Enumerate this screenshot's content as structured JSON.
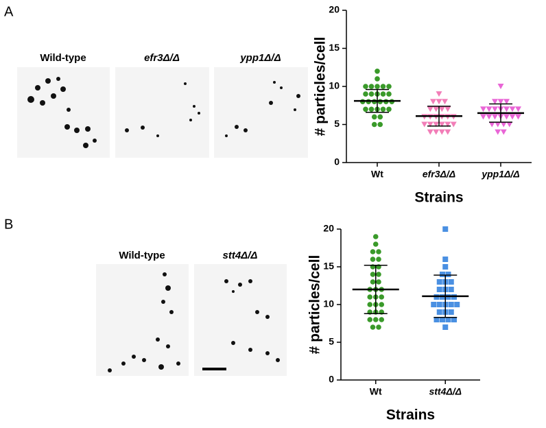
{
  "panels": [
    {
      "label": "A",
      "image_labels": [
        "Wild-type",
        "efr3Δ/Δ",
        "ypp1Δ/Δ"
      ]
    },
    {
      "label": "B",
      "image_labels": [
        "Wild-type",
        "stt4Δ/Δ"
      ]
    }
  ],
  "chart_data": [
    {
      "type": "dot",
      "ylabel": "# particles/cell",
      "xlabel": "Strains",
      "categories": [
        "Wt",
        "efr3Δ/Δ",
        "ypp1Δ/Δ"
      ],
      "italic": [
        false,
        true,
        true
      ],
      "colors": [
        "#3a9a2a",
        "#f27eb8",
        "#e966d6"
      ],
      "markers": [
        "circle",
        "triangle-down",
        "triangle-down"
      ],
      "points": [
        [
          12,
          11,
          10,
          10,
          10,
          10,
          10,
          9,
          9,
          9,
          9,
          9,
          8,
          8,
          8,
          8,
          8,
          8,
          7,
          7,
          7,
          7,
          7,
          6,
          6,
          5,
          5
        ],
        [
          9,
          8,
          8,
          8,
          7,
          7,
          7,
          7,
          6,
          6,
          6,
          6,
          6,
          6,
          5,
          5,
          5,
          5,
          5,
          5,
          4,
          4,
          4,
          4
        ],
        [
          10,
          8,
          8,
          8,
          7,
          7,
          7,
          7,
          7,
          7,
          7,
          6,
          6,
          6,
          6,
          6,
          6,
          6,
          5,
          5,
          5,
          5,
          4,
          4
        ]
      ],
      "means": [
        8.1,
        6.1,
        6.5
      ],
      "sd": [
        1.5,
        1.3,
        1.2
      ],
      "ylim": [
        0,
        20
      ],
      "yticks": [
        0,
        5,
        10,
        15,
        20
      ]
    },
    {
      "type": "dot",
      "ylabel": "# particles/cell",
      "xlabel": "Strains",
      "categories": [
        "Wt",
        "stt4Δ/Δ"
      ],
      "italic": [
        false,
        true
      ],
      "colors": [
        "#3a9a2a",
        "#4a90e2"
      ],
      "markers": [
        "circle",
        "square"
      ],
      "points": [
        [
          19,
          18,
          17,
          17,
          16,
          16,
          15,
          15,
          14,
          14,
          13,
          13,
          12,
          12,
          12,
          11,
          11,
          11,
          10,
          10,
          10,
          9,
          9,
          9,
          8,
          8,
          8,
          7,
          7
        ],
        [
          20,
          16,
          15,
          14,
          14,
          13,
          13,
          13,
          12,
          12,
          12,
          11,
          11,
          11,
          11,
          10,
          10,
          10,
          10,
          10,
          9,
          9,
          9,
          8,
          8,
          8,
          8,
          7
        ]
      ],
      "means": [
        12,
        11.1
      ],
      "sd": [
        3.2,
        2.8
      ],
      "ylim": [
        0,
        20
      ],
      "yticks": [
        0,
        5,
        10,
        15,
        20
      ]
    }
  ]
}
